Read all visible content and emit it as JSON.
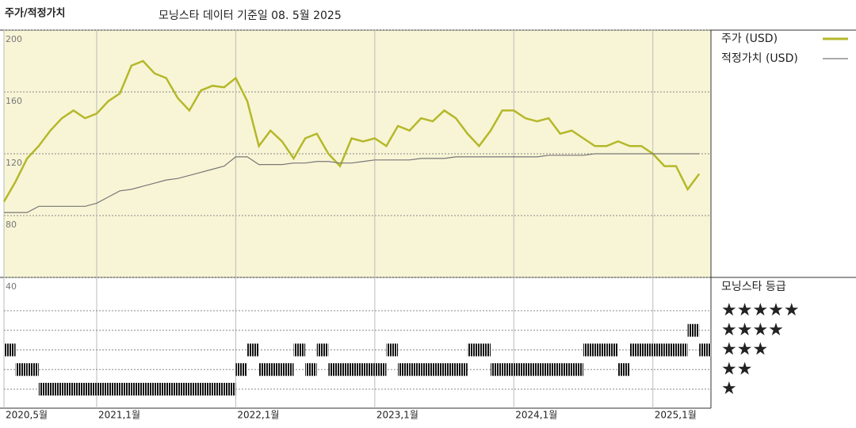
{
  "chart_data": [
    {
      "type": "line",
      "title": "주가/적정가치",
      "subtitle": "모닝스타 데이터 기준일 08. 5월 2025",
      "x": [
        "2020-05",
        "2020-06",
        "2020-07",
        "2020-08",
        "2020-09",
        "2020-10",
        "2020-11",
        "2020-12",
        "2021-01",
        "2021-02",
        "2021-03",
        "2021-04",
        "2021-05",
        "2021-06",
        "2021-07",
        "2021-08",
        "2021-09",
        "2021-10",
        "2021-11",
        "2021-12",
        "2022-01",
        "2022-02",
        "2022-03",
        "2022-04",
        "2022-05",
        "2022-06",
        "2022-07",
        "2022-08",
        "2022-09",
        "2022-10",
        "2022-11",
        "2022-12",
        "2023-01",
        "2023-02",
        "2023-03",
        "2023-04",
        "2023-05",
        "2023-06",
        "2023-07",
        "2023-08",
        "2023-09",
        "2023-10",
        "2023-11",
        "2023-12",
        "2024-01",
        "2024-02",
        "2024-03",
        "2024-04",
        "2024-05",
        "2024-06",
        "2024-07",
        "2024-08",
        "2024-09",
        "2024-10",
        "2024-11",
        "2024-12",
        "2025-01",
        "2025-02",
        "2025-03",
        "2025-04",
        "2025-05"
      ],
      "series": [
        {
          "name": "주가 (USD)",
          "color": "#b5b82a",
          "values": [
            89,
            102,
            117,
            125,
            135,
            143,
            148,
            143,
            146,
            154,
            159,
            177,
            180,
            172,
            169,
            156,
            148,
            161,
            164,
            163,
            169,
            154,
            125,
            135,
            128,
            117,
            130,
            133,
            120,
            112,
            130,
            128,
            130,
            125,
            138,
            135,
            143,
            141,
            148,
            143,
            133,
            125,
            135,
            148,
            148,
            143,
            141,
            143,
            133,
            135,
            130,
            125,
            125,
            128,
            125,
            125,
            120,
            112,
            112,
            97,
            107
          ]
        },
        {
          "name": "적정가치 (USD)",
          "color": "#777777",
          "values": [
            82,
            82,
            82,
            86,
            86,
            86,
            86,
            86,
            88,
            92,
            96,
            97,
            99,
            101,
            103,
            104,
            106,
            108,
            110,
            112,
            118,
            118,
            113,
            113,
            113,
            114,
            114,
            115,
            115,
            114,
            114,
            115,
            116,
            116,
            116,
            116,
            117,
            117,
            117,
            118,
            118,
            118,
            118,
            118,
            118,
            118,
            118,
            119,
            119,
            119,
            119,
            120,
            120,
            120,
            120,
            120,
            120,
            120,
            120,
            120,
            120
          ]
        }
      ],
      "ylim": [
        40,
        200
      ],
      "yticks": [
        40,
        80,
        120,
        160,
        200
      ],
      "background": "#f8f5d6"
    },
    {
      "type": "rating",
      "legend_title": "모닝스타 등급",
      "color": "#111111",
      "x": [
        "2020-05",
        "2020-06",
        "2020-07",
        "2020-08",
        "2020-09",
        "2020-10",
        "2020-11",
        "2020-12",
        "2021-01",
        "2021-02",
        "2021-03",
        "2021-04",
        "2021-05",
        "2021-06",
        "2021-07",
        "2021-08",
        "2021-09",
        "2021-10",
        "2021-11",
        "2021-12",
        "2022-01",
        "2022-02",
        "2022-03",
        "2022-04",
        "2022-05",
        "2022-06",
        "2022-07",
        "2022-08",
        "2022-09",
        "2022-10",
        "2022-11",
        "2022-12",
        "2023-01",
        "2023-02",
        "2023-03",
        "2023-04",
        "2023-05",
        "2023-06",
        "2023-07",
        "2023-08",
        "2023-09",
        "2023-10",
        "2023-11",
        "2023-12",
        "2024-01",
        "2024-02",
        "2024-03",
        "2024-04",
        "2024-05",
        "2024-06",
        "2024-07",
        "2024-08",
        "2024-09",
        "2024-10",
        "2024-11",
        "2024-12",
        "2025-01",
        "2025-02",
        "2025-03",
        "2025-04",
        "2025-05"
      ],
      "values": [
        3,
        2,
        2,
        1,
        1,
        1,
        1,
        1,
        1,
        1,
        1,
        1,
        1,
        1,
        1,
        1,
        1,
        1,
        1,
        1,
        2,
        3,
        2,
        2,
        2,
        3,
        2,
        3,
        2,
        2,
        2,
        2,
        2,
        3,
        2,
        2,
        2,
        2,
        2,
        2,
        3,
        3,
        2,
        2,
        2,
        2,
        2,
        2,
        2,
        2,
        3,
        3,
        3,
        2,
        3,
        3,
        3,
        3,
        3,
        4,
        3
      ],
      "yticks": [
        {
          "value": 5,
          "label": "★★★★★"
        },
        {
          "value": 4,
          "label": "★★★★"
        },
        {
          "value": 3,
          "label": "★★★"
        },
        {
          "value": 2,
          "label": "★★"
        },
        {
          "value": 1,
          "label": "★"
        }
      ],
      "xticks": [
        {
          "value": "2020-05",
          "label": "2020,5월"
        },
        {
          "value": "2021-01",
          "label": "2021,1월"
        },
        {
          "value": "2022-01",
          "label": "2022,1월"
        },
        {
          "value": "2023-01",
          "label": "2023,1월"
        },
        {
          "value": "2024-01",
          "label": "2024,1월"
        },
        {
          "value": "2025-01",
          "label": "2025,1월"
        }
      ]
    }
  ]
}
